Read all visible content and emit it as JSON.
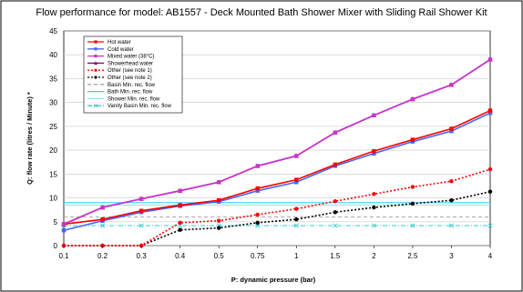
{
  "chart_data": {
    "type": "line",
    "title": "Flow performance for model: AB1557 - Deck Mounted Bath Shower Mixer with Sliding Rail Shower Kit",
    "xlabel": "P: dynamic pressure (bar)",
    "ylabel": "Q: flow rate (litres / Minute) *",
    "categories": [
      "0.1",
      "0.2",
      "0.3",
      "0.4",
      "0.5",
      "0.75",
      "1",
      "1.5",
      "2",
      "2.5",
      "3",
      "4"
    ],
    "ylim": [
      0,
      45
    ],
    "yticks": [
      "0",
      "5",
      "10",
      "15",
      "20",
      "25",
      "30",
      "35",
      "40",
      "45"
    ],
    "grid": "horizontal",
    "legend_position": "top-left",
    "series": [
      {
        "name": "Hot water",
        "color": "#ff0000",
        "dash": "solid",
        "marker": "square",
        "values": [
          4.5,
          5.5,
          7.3,
          8.5,
          9.5,
          12,
          13.8,
          17,
          19.8,
          22.2,
          24.5,
          28.3
        ]
      },
      {
        "name": "Cold water",
        "color": "#4466ff",
        "dash": "solid",
        "marker": "square",
        "values": [
          3.2,
          5.2,
          7,
          8.3,
          9.2,
          11.5,
          13.3,
          16.7,
          19.3,
          21.8,
          24,
          27.8
        ]
      },
      {
        "name": "Mixed water (38°C)",
        "color": "#cc33cc",
        "dash": "solid",
        "marker": "square",
        "values": [
          4.5,
          8,
          9.8,
          11.5,
          13.3,
          16.7,
          18.8,
          23.7,
          27.3,
          30.7,
          33.7,
          39
        ]
      },
      {
        "name": "Showerhead water",
        "color": "#800080",
        "dash": "solid",
        "marker": "triangle",
        "values": [
          4.5,
          8,
          9.8,
          11.5,
          13.3,
          16.7,
          18.8,
          23.7,
          27.3,
          30.7,
          33.7,
          39
        ]
      },
      {
        "name": "Other (see note 1)",
        "color": "#ff0000",
        "dash": "dotted",
        "marker": "circle",
        "values": [
          0,
          0,
          0,
          4.8,
          5.2,
          6.5,
          7.7,
          9.3,
          10.8,
          12.3,
          13.5,
          16
        ]
      },
      {
        "name": "Other (see note 2)",
        "color": "#000000",
        "dash": "dotted",
        "marker": "circle",
        "values": [
          0,
          0,
          0,
          3.3,
          3.7,
          4.8,
          5.5,
          7,
          8,
          8.8,
          9.5,
          11.3
        ]
      },
      {
        "name": "Basin Min. rec. flow",
        "color": "#aaaaaa",
        "dash": "dashed",
        "marker": "none",
        "values": [
          6,
          6,
          6,
          6,
          6,
          6,
          6,
          6,
          6,
          6,
          6,
          6
        ]
      },
      {
        "name": "Bath Min. rec. flow",
        "color": "#33ccff",
        "dash": "solid",
        "marker": "none",
        "values": [
          9,
          9,
          9,
          9,
          9,
          9,
          9,
          9,
          9,
          9,
          9,
          9
        ]
      },
      {
        "name": "Shower Min. rec. flow",
        "color": "#99ddff",
        "dash": "solid",
        "marker": "none",
        "values": [
          8.5,
          8.5,
          8.5,
          8.5,
          8.5,
          8.5,
          8.5,
          8.5,
          8.5,
          8.5,
          8.5,
          8.5
        ]
      },
      {
        "name": "Vanity Basin Min. rec. flow",
        "color": "#33cccc",
        "dash": "dashdot",
        "marker": "x",
        "values": [
          4.2,
          4.2,
          4.2,
          4.2,
          4.2,
          4.2,
          4.2,
          4.2,
          4.2,
          4.2,
          4.2,
          4.2
        ]
      }
    ]
  }
}
